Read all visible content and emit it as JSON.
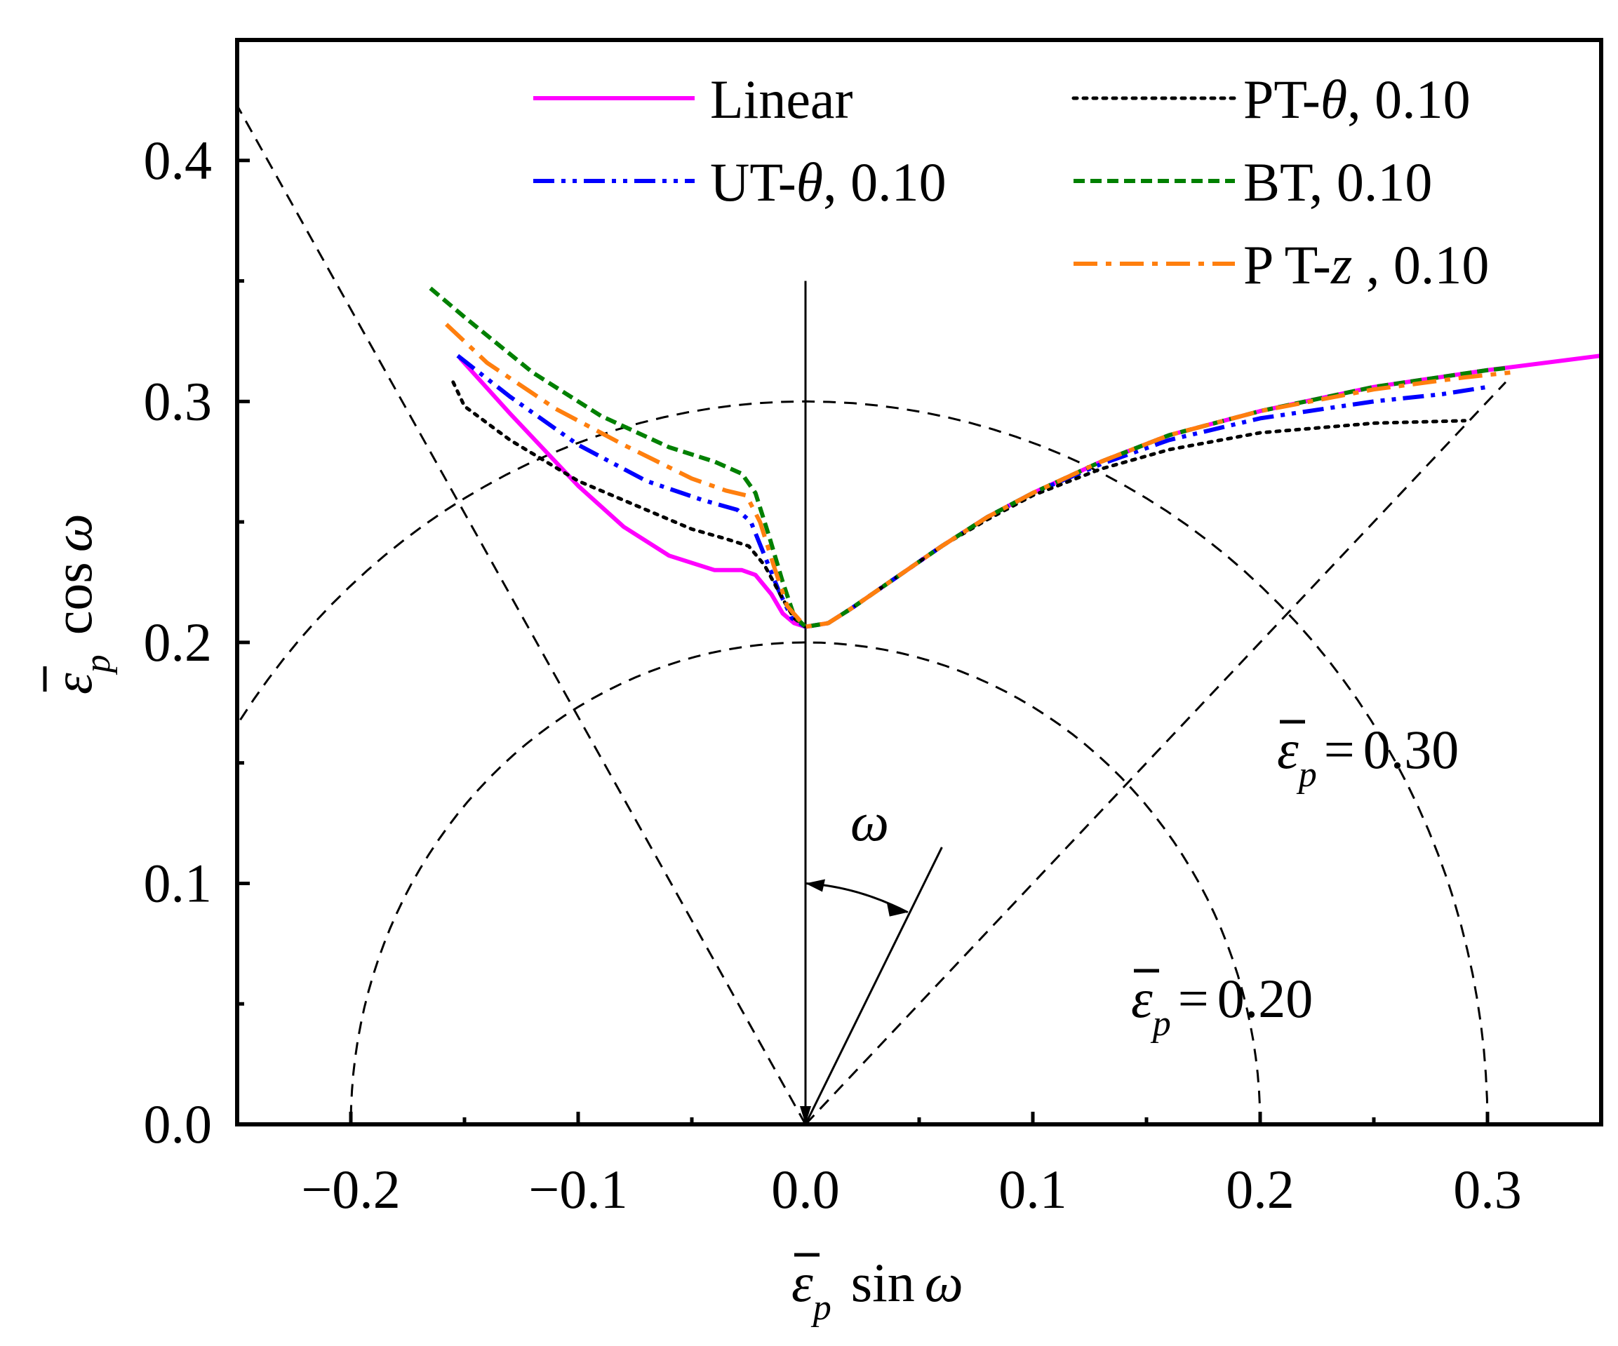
{
  "chart_data": {
    "type": "line",
    "title": "",
    "xlabel": "ε̄p sin ω",
    "ylabel": "ε̄p cos ω",
    "xlim": [
      -0.25,
      0.35
    ],
    "ylim": [
      0.0,
      0.45
    ],
    "x_ticks": [
      {
        "value": -0.2,
        "label": "−0.2"
      },
      {
        "value": -0.1,
        "label": "−0.1"
      },
      {
        "value": 0.0,
        "label": "0.0"
      },
      {
        "value": 0.1,
        "label": "0.1"
      },
      {
        "value": 0.2,
        "label": "0.2"
      },
      {
        "value": 0.3,
        "label": "0.3"
      }
    ],
    "x_minor_ticks": [
      -0.15,
      -0.05,
      0.05,
      0.15,
      0.25
    ],
    "y_ticks": [
      {
        "value": 0.0,
        "label": "0.0"
      },
      {
        "value": 0.1,
        "label": "0.1"
      },
      {
        "value": 0.2,
        "label": "0.2"
      },
      {
        "value": 0.3,
        "label": "0.3"
      },
      {
        "value": 0.4,
        "label": "0.4"
      }
    ],
    "y_minor_ticks": [
      0.05,
      0.15,
      0.25,
      0.35
    ],
    "grid": false,
    "legend_position": "top-right",
    "series": [
      {
        "name": "Linear",
        "legend_parts": [
          "Linear",
          "",
          ""
        ],
        "color": "#ff00ff",
        "style": "solid",
        "points": [
          [
            -0.152,
            0.318
          ],
          [
            -0.13,
            0.295
          ],
          [
            -0.1,
            0.265
          ],
          [
            -0.08,
            0.248
          ],
          [
            -0.06,
            0.236
          ],
          [
            -0.04,
            0.23
          ],
          [
            -0.028,
            0.23
          ],
          [
            -0.022,
            0.228
          ],
          [
            -0.015,
            0.22
          ],
          [
            -0.01,
            0.212
          ],
          [
            -0.005,
            0.208
          ],
          [
            0.0,
            0.2065
          ],
          [
            0.01,
            0.208
          ],
          [
            0.02,
            0.214
          ],
          [
            0.04,
            0.227
          ],
          [
            0.06,
            0.24
          ],
          [
            0.08,
            0.252
          ],
          [
            0.1,
            0.262
          ],
          [
            0.13,
            0.275
          ],
          [
            0.16,
            0.286
          ],
          [
            0.2,
            0.296
          ],
          [
            0.25,
            0.306
          ],
          [
            0.3,
            0.313
          ],
          [
            0.35,
            0.319
          ]
        ]
      },
      {
        "name": "UT-θ, 0.10",
        "legend_parts": [
          "UT-",
          "θ",
          ", 0.10"
        ],
        "color": "#0000ff",
        "style": "dash-dot-dot",
        "points": [
          [
            -0.153,
            0.319
          ],
          [
            -0.13,
            0.302
          ],
          [
            -0.1,
            0.282
          ],
          [
            -0.07,
            0.267
          ],
          [
            -0.045,
            0.259
          ],
          [
            -0.03,
            0.255
          ],
          [
            -0.024,
            0.25
          ],
          [
            -0.018,
            0.236
          ],
          [
            -0.012,
            0.222
          ],
          [
            -0.006,
            0.21
          ],
          [
            0.0,
            0.2065
          ],
          [
            0.01,
            0.208
          ],
          [
            0.02,
            0.214
          ],
          [
            0.04,
            0.227
          ],
          [
            0.06,
            0.24
          ],
          [
            0.08,
            0.252
          ],
          [
            0.1,
            0.262
          ],
          [
            0.13,
            0.274
          ],
          [
            0.16,
            0.284
          ],
          [
            0.2,
            0.293
          ],
          [
            0.25,
            0.3
          ],
          [
            0.28,
            0.303
          ],
          [
            0.3,
            0.306
          ]
        ]
      },
      {
        "name": "PT-θ,  0.10",
        "legend_parts": [
          "PT-",
          "θ",
          ",  0.10"
        ],
        "color": "#000000",
        "style": "dotted",
        "points": [
          [
            -0.155,
            0.308
          ],
          [
            -0.15,
            0.298
          ],
          [
            -0.13,
            0.284
          ],
          [
            -0.1,
            0.267
          ],
          [
            -0.07,
            0.255
          ],
          [
            -0.05,
            0.247
          ],
          [
            -0.035,
            0.243
          ],
          [
            -0.025,
            0.24
          ],
          [
            -0.018,
            0.232
          ],
          [
            -0.01,
            0.218
          ],
          [
            -0.005,
            0.21
          ],
          [
            0.0,
            0.2065
          ],
          [
            0.01,
            0.208
          ],
          [
            0.02,
            0.214
          ],
          [
            0.04,
            0.227
          ],
          [
            0.06,
            0.24
          ],
          [
            0.08,
            0.251
          ],
          [
            0.1,
            0.261
          ],
          [
            0.13,
            0.272
          ],
          [
            0.16,
            0.28
          ],
          [
            0.2,
            0.287
          ],
          [
            0.25,
            0.291
          ],
          [
            0.29,
            0.292
          ]
        ]
      },
      {
        "name": "BT,    0.10",
        "legend_parts": [
          "BT,    0.10",
          "",
          ""
        ],
        "color": "#008000",
        "style": "dashed",
        "points": [
          [
            -0.165,
            0.347
          ],
          [
            -0.15,
            0.335
          ],
          [
            -0.12,
            0.312
          ],
          [
            -0.09,
            0.294
          ],
          [
            -0.06,
            0.281
          ],
          [
            -0.04,
            0.275
          ],
          [
            -0.028,
            0.27
          ],
          [
            -0.022,
            0.262
          ],
          [
            -0.016,
            0.244
          ],
          [
            -0.01,
            0.225
          ],
          [
            -0.005,
            0.211
          ],
          [
            0.0,
            0.2065
          ],
          [
            0.01,
            0.208
          ],
          [
            0.02,
            0.214
          ],
          [
            0.04,
            0.227
          ],
          [
            0.06,
            0.24
          ],
          [
            0.08,
            0.252
          ],
          [
            0.1,
            0.262
          ],
          [
            0.13,
            0.275
          ],
          [
            0.16,
            0.286
          ],
          [
            0.2,
            0.296
          ],
          [
            0.25,
            0.306
          ],
          [
            0.3,
            0.313
          ],
          [
            0.31,
            0.314
          ]
        ]
      },
      {
        "name": "P T-z , 0.10",
        "legend_parts": [
          "P T-",
          "z",
          " , 0.10"
        ],
        "color": "#ff7f0e",
        "style": "dash-dot",
        "points": [
          [
            -0.158,
            0.332
          ],
          [
            -0.14,
            0.316
          ],
          [
            -0.11,
            0.297
          ],
          [
            -0.08,
            0.282
          ],
          [
            -0.05,
            0.268
          ],
          [
            -0.035,
            0.263
          ],
          [
            -0.026,
            0.261
          ],
          [
            -0.02,
            0.25
          ],
          [
            -0.014,
            0.232
          ],
          [
            -0.008,
            0.215
          ],
          [
            0.0,
            0.2065
          ],
          [
            0.01,
            0.208
          ],
          [
            0.02,
            0.214
          ],
          [
            0.04,
            0.227
          ],
          [
            0.06,
            0.24
          ],
          [
            0.08,
            0.252
          ],
          [
            0.1,
            0.262
          ],
          [
            0.13,
            0.275
          ],
          [
            0.16,
            0.286
          ],
          [
            0.2,
            0.296
          ],
          [
            0.25,
            0.305
          ],
          [
            0.29,
            0.31
          ],
          [
            0.31,
            0.312
          ]
        ]
      }
    ],
    "reference_circles": [
      {
        "radius": 0.2,
        "label_prefix": "ε̄p = ",
        "label_value": "0.20"
      },
      {
        "radius": 0.3,
        "label_prefix": "ε̄p = ",
        "label_value": "0.30"
      }
    ],
    "reference_rays": [
      {
        "end": [
          -0.272,
          0.46
        ]
      },
      {
        "end": [
          0.308,
          0.308
        ]
      }
    ],
    "omega_label": "ω",
    "axis_title_parts": {
      "x": {
        "symbol": "ε",
        "subscript": "p",
        "func": "sin",
        "var": "ω"
      },
      "y": {
        "symbol": "ε",
        "subscript": "p",
        "func": "cos",
        "var": "ω"
      }
    }
  }
}
